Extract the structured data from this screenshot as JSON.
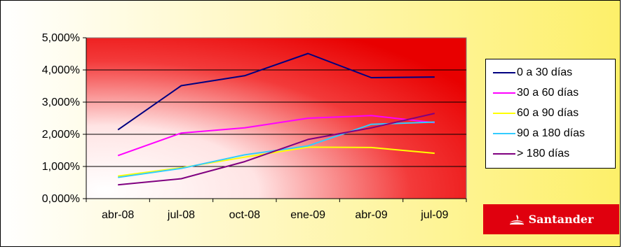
{
  "chart_data": {
    "type": "line",
    "categories": [
      "abr-08",
      "jul-08",
      "oct-08",
      "ene-09",
      "abr-09",
      "jul-09"
    ],
    "series": [
      {
        "name": "0 a 30 días",
        "color": "#000080",
        "values": [
          2.14,
          3.51,
          3.82,
          4.51,
          3.76,
          3.78
        ]
      },
      {
        "name": "30 a 60 días",
        "color": "#ff00ff",
        "values": [
          1.34,
          2.04,
          2.2,
          2.5,
          2.58,
          2.36
        ]
      },
      {
        "name": "60 a 90 días",
        "color": "#ffff00",
        "values": [
          0.7,
          0.96,
          1.29,
          1.6,
          1.59,
          1.41
        ]
      },
      {
        "name": "90 a 180 días",
        "color": "#33ccff",
        "values": [
          0.66,
          0.94,
          1.36,
          1.64,
          2.31,
          2.38
        ]
      },
      {
        "name": "> 180 días",
        "color": "#800080",
        "values": [
          0.43,
          0.62,
          1.15,
          1.84,
          2.2,
          2.65
        ]
      }
    ],
    "y_ticks": [
      "0,000%",
      "1,000%",
      "2,000%",
      "3,000%",
      "4,000%",
      "5,000%"
    ],
    "ylim": [
      0,
      5
    ],
    "title": "",
    "xlabel": "",
    "ylabel": "",
    "grid": "horizontal",
    "legend": "right"
  },
  "logo": {
    "text": "Santander",
    "icon": "santander-flame-icon"
  }
}
